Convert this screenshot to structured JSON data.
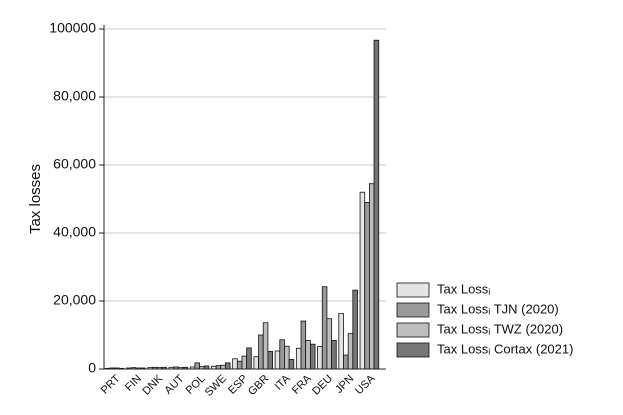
{
  "chart_data": {
    "type": "bar",
    "y_label": "Tax losses",
    "categories": [
      "PRT",
      "FIN",
      "DNK",
      "AUT",
      "POL",
      "SWE",
      "ESP",
      "GBR",
      "ITA",
      "FRA",
      "DEU",
      "JPN",
      "USA"
    ],
    "series": [
      {
        "name": "Tax Lossᵢ",
        "color": "#e4e4e4",
        "values": [
          200,
          300,
          400,
          500,
          600,
          800,
          3000,
          3600,
          5300,
          6100,
          6600,
          16300,
          52000
        ]
      },
      {
        "name": "Tax Lossᵢ TJN (2020)",
        "color": "#9a9a9a",
        "values": [
          300,
          400,
          500,
          600,
          1800,
          1000,
          2300,
          10000,
          8600,
          14100,
          24200,
          4100,
          49000
        ]
      },
      {
        "name": "Tax Lossᵢ TWZ (2020)",
        "color": "#bdbdbd",
        "values": [
          300,
          300,
          400,
          400,
          700,
          1100,
          3800,
          13600,
          6700,
          8400,
          14800,
          10400,
          54500
        ]
      },
      {
        "name": "Tax Lossᵢ Cortax (2021)",
        "color": "#777777",
        "values": [
          200,
          300,
          500,
          500,
          900,
          1800,
          6200,
          5200,
          2800,
          7300,
          8400,
          23200,
          96700
        ]
      }
    ],
    "ylim": [
      0,
      100000
    ],
    "yticks": [
      0,
      {
        "value": 20000,
        "label": "20,000"
      },
      {
        "value": 40000,
        "label": "40,000"
      },
      {
        "value": 60000,
        "label": "60,000"
      },
      {
        "value": 80000,
        "label": "80,000"
      },
      100000
    ],
    "grid": true,
    "legend": "right"
  }
}
